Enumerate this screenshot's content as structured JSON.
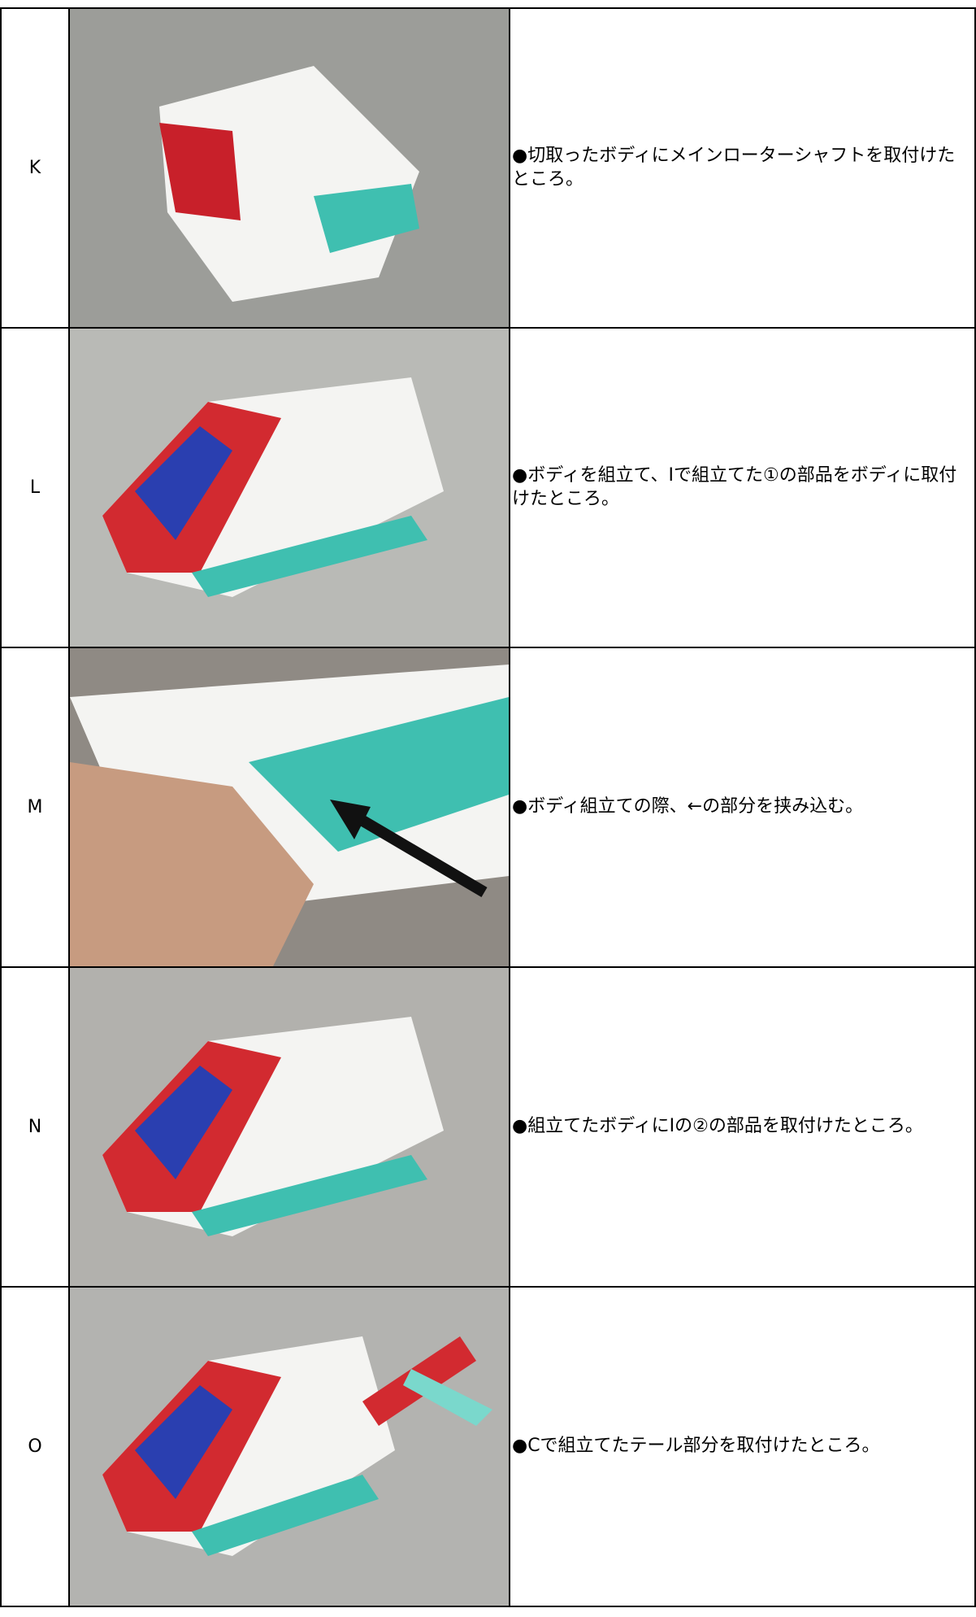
{
  "rows": [
    {
      "label": "K",
      "text": "●切取ったボディにメインローターシャフトを取付けたところ。"
    },
    {
      "label": "L",
      "text": "●ボディを組立て、Iで組立てた①の部品をボディに取付けたところ。"
    },
    {
      "label": "M",
      "text": "●ボディ組立ての際、←の部分を挟み込む。"
    },
    {
      "label": "N",
      "text": "●組立てたボディにIの②の部品を取付けたところ。"
    },
    {
      "label": "O",
      "text": "●Cで組立てたテール部分を取付けたところ。"
    }
  ]
}
